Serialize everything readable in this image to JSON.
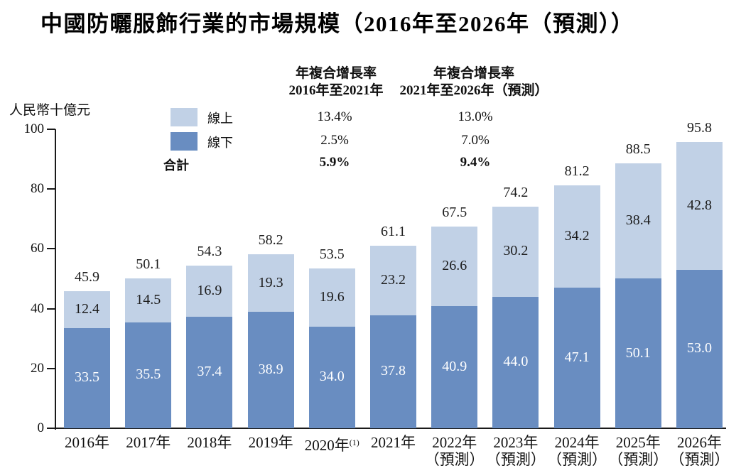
{
  "title": "中國防曬服飾行業的市場規模（2016年至2026年（預測））",
  "y_axis_unit": "人民幣十億元",
  "legend": {
    "online_label": "線上",
    "offline_label": "線下",
    "total_label": "合計"
  },
  "cagr_table": {
    "period1": {
      "header_line1": "年複合增長率",
      "header_line2": "2016年至2021年",
      "online": "13.4%",
      "offline": "2.5%",
      "total": "5.9%"
    },
    "period2": {
      "header_line1": "年複合增長率",
      "header_line2": "2021年至2026年（預測）",
      "online": "13.0%",
      "offline": "7.0%",
      "total": "9.4%"
    }
  },
  "colors": {
    "online": "#c1d1e6",
    "offline": "#698dc1",
    "axis": "#1a1a1a",
    "text": "#111111"
  },
  "chart_data": {
    "type": "bar",
    "stacked": true,
    "title": "中國防曬服飾行業的市場規模（2016年至2026年（預測））",
    "xlabel": "",
    "ylabel": "人民幣十億元",
    "ylim": [
      0,
      100
    ],
    "yticks": [
      0,
      20,
      40,
      60,
      80,
      100
    ],
    "grid": false,
    "legend_position": "top-left",
    "categories": [
      {
        "label": "2016年"
      },
      {
        "label": "2017年"
      },
      {
        "label": "2018年"
      },
      {
        "label": "2019年"
      },
      {
        "label": "2020年",
        "note": "(1)"
      },
      {
        "label": "2021年"
      },
      {
        "label": "2022年",
        "sub": "（預測）"
      },
      {
        "label": "2023年",
        "sub": "（預測）"
      },
      {
        "label": "2024年",
        "sub": "（預測）"
      },
      {
        "label": "2025年",
        "sub": "（預測）"
      },
      {
        "label": "2026年",
        "sub": "（預測）"
      }
    ],
    "series": [
      {
        "name": "線下",
        "color": "#698dc1",
        "label_color": "#ffffff",
        "values": [
          33.5,
          35.5,
          37.4,
          38.9,
          34.0,
          37.8,
          40.9,
          44.0,
          47.1,
          50.1,
          53.0
        ]
      },
      {
        "name": "線上",
        "color": "#c1d1e6",
        "label_color": "#1c1c1c",
        "values": [
          12.4,
          14.5,
          16.9,
          19.3,
          19.6,
          23.2,
          26.6,
          30.2,
          34.2,
          38.4,
          42.8
        ]
      }
    ],
    "totals": [
      45.9,
      50.1,
      54.3,
      58.2,
      53.5,
      61.1,
      67.5,
      74.2,
      81.2,
      88.5,
      95.8
    ]
  }
}
